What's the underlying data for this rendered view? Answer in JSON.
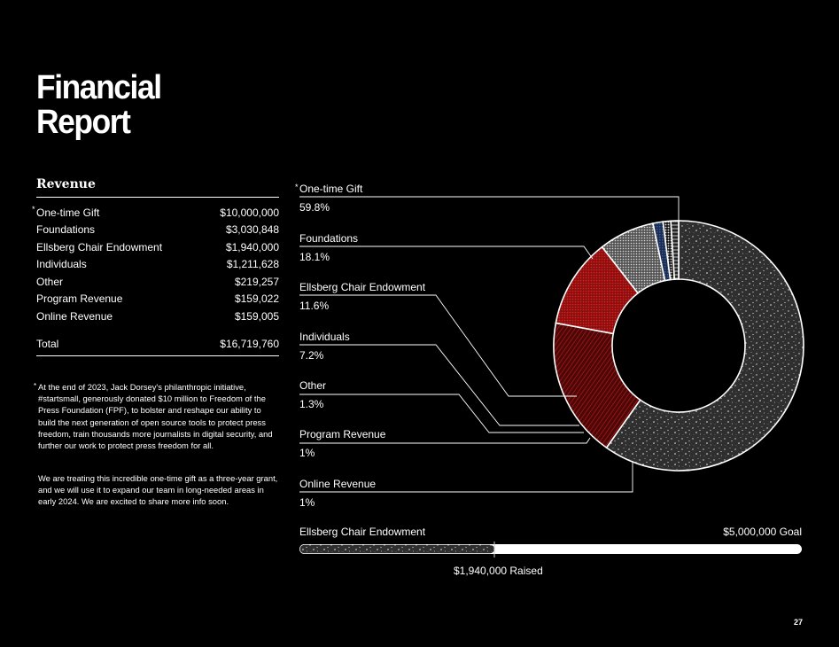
{
  "title": {
    "line1": "Financial",
    "line2": "Report"
  },
  "revenue": {
    "heading": "Revenue",
    "star": "*",
    "rows": [
      {
        "label": "One-time Gift",
        "value": "$10,000,000"
      },
      {
        "label": "Foundations",
        "value": "$3,030,848"
      },
      {
        "label": "Ellsberg Chair Endowment",
        "value": "$1,940,000"
      },
      {
        "label": "Individuals",
        "value": "$1,211,628"
      },
      {
        "label": "Other",
        "value": "$219,257"
      },
      {
        "label": "Program Revenue",
        "value": "$159,022"
      },
      {
        "label": "Online Revenue",
        "value": "$159,005"
      }
    ],
    "total_label": "Total",
    "total_value": "$16,719,760"
  },
  "footnote": {
    "p1": "At the end of 2023, Jack Dorsey's philanthropic initiative, #startsmall, generously donated $10 million to Freedom of the Press Foundation (FPF), to bolster and reshape our ability to build the next generation of open source tools to protect press freedom, train thousands more journalists in digital security, and further our work to protect press freedom for all.",
    "p2": "We are treating this incredible one-time gift as a three-year grant, and we will use it to expand our team in long-needed areas in early 2024. We are excited to share more info soon."
  },
  "chart_data": [
    {
      "type": "pie",
      "donut": true,
      "categories": [
        "One-time Gift",
        "Foundations",
        "Ellsberg Chair Endowment",
        "Individuals",
        "Other",
        "Program Revenue",
        "Online Revenue"
      ],
      "values": [
        59.8,
        18.1,
        11.6,
        7.2,
        1.3,
        1,
        1
      ],
      "labels": [
        "59.8%",
        "18.1%",
        "11.6%",
        "7.2%",
        "1.3%",
        "1%",
        "1%"
      ],
      "colors": [
        "#3a3a3a",
        "#7a0d0d",
        "#b01515",
        "#9a9a9a",
        "#2a3f6b",
        "#d0d0d0",
        "#bdbdbd"
      ]
    },
    {
      "type": "bar",
      "orientation": "horizontal",
      "label": "Ellsberg Chair Endowment",
      "raised": 1940000,
      "goal": 5000000,
      "raised_label": "$1,940,000 Raised",
      "goal_label": "$5,000,000 Goal"
    }
  ],
  "page_number": "27"
}
